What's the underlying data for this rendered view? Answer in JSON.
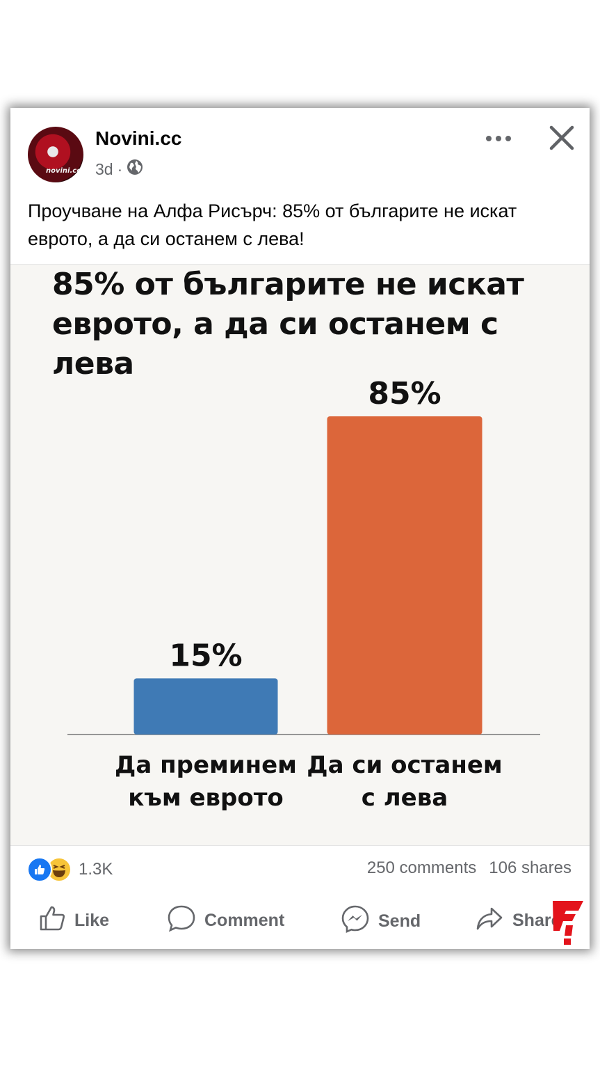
{
  "post": {
    "page_name": "Novini.cc",
    "avatar_text": "novini.cc",
    "time": "3d",
    "separator": "·",
    "text": "Проучване на Алфа Рисърч: 85% от българите не искат еврото, а да си останем с лева!"
  },
  "icons": {
    "more": "more-icon",
    "close": "close-icon",
    "globe": "globe-icon"
  },
  "chart_data": {
    "type": "bar",
    "title": "85% от българите не искат еврото, а да си останем с лева",
    "categories": [
      "Да преминем към еврото",
      "Да си останем с лева"
    ],
    "category_lines": [
      [
        "Да преминем",
        "към еврото"
      ],
      [
        "Да си останем",
        "с лева"
      ]
    ],
    "values": [
      15,
      85
    ],
    "value_labels": [
      "15%",
      "85%"
    ],
    "colors": [
      "#3f7ab5",
      "#dc663a"
    ],
    "ylim": [
      0,
      100
    ],
    "grid": false
  },
  "stats": {
    "reactions_count": "1.3K",
    "comments": "250 comments",
    "shares": "106 shares"
  },
  "actions": {
    "like": "Like",
    "comment": "Comment",
    "send": "Send",
    "share": "Share"
  },
  "colors": {
    "secondary_text": "#65676b",
    "like_blue": "#1877f2",
    "logo_red": "#e3141c"
  }
}
